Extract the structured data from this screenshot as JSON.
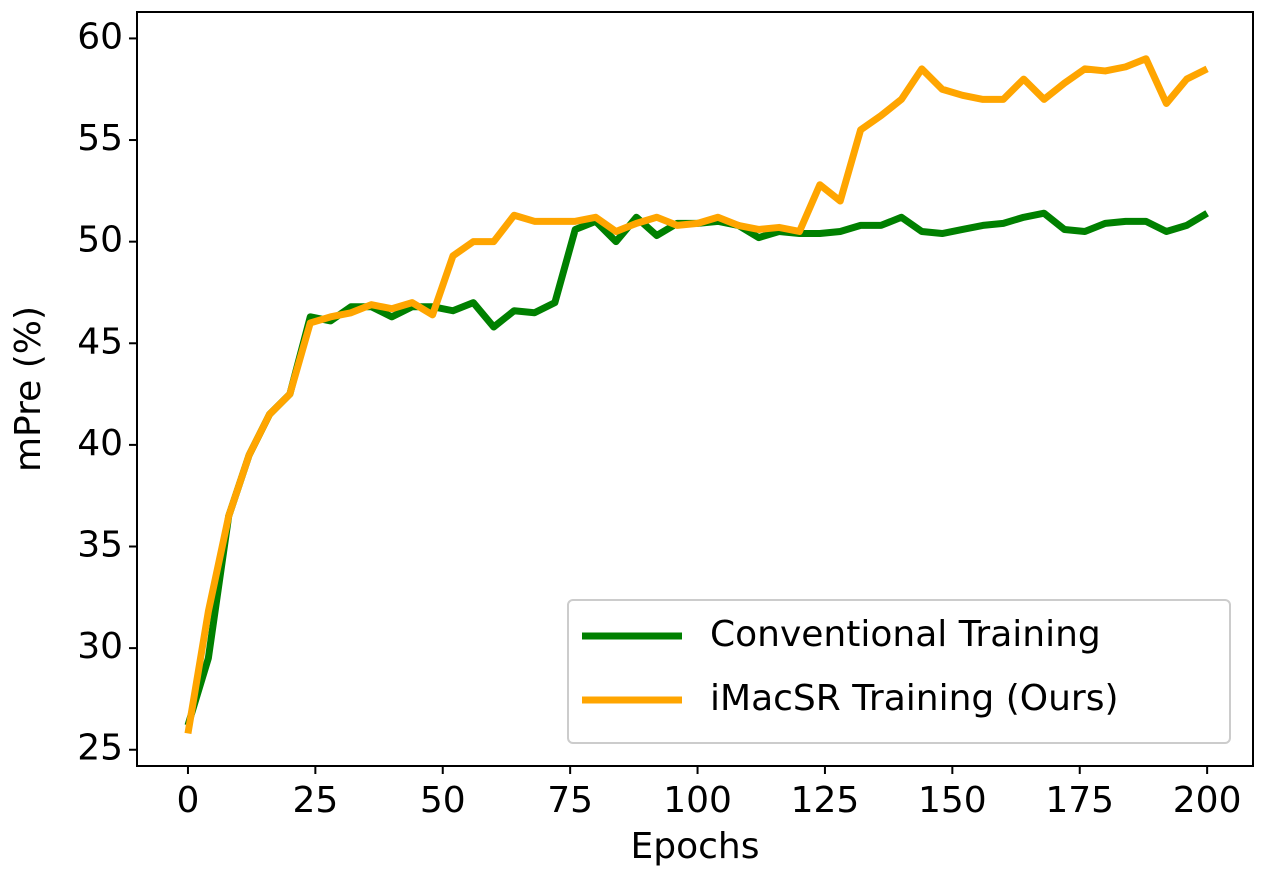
{
  "chart_data": {
    "type": "line",
    "x_label": "Epochs",
    "y_label": "mPre (%)",
    "x": [
      0,
      4,
      8,
      12,
      16,
      20,
      24,
      28,
      32,
      36,
      40,
      44,
      48,
      52,
      56,
      60,
      64,
      68,
      72,
      76,
      80,
      84,
      88,
      92,
      96,
      100,
      104,
      108,
      112,
      116,
      120,
      124,
      128,
      132,
      136,
      140,
      144,
      148,
      152,
      156,
      160,
      164,
      168,
      172,
      176,
      180,
      184,
      188,
      192,
      196,
      200
    ],
    "series": [
      {
        "name": "Conventional Training",
        "color": "#008000",
        "values": [
          26.2,
          29.5,
          36.5,
          39.5,
          41.5,
          42.5,
          46.3,
          46.1,
          46.8,
          46.8,
          46.3,
          46.8,
          46.8,
          46.6,
          47.0,
          45.8,
          46.6,
          46.5,
          47.0,
          50.6,
          51.0,
          50.0,
          51.2,
          50.3,
          50.9,
          50.9,
          51.0,
          50.8,
          50.2,
          50.5,
          50.4,
          50.4,
          50.5,
          50.8,
          50.8,
          51.2,
          50.5,
          50.4,
          50.6,
          50.8,
          50.9,
          51.2,
          51.4,
          50.6,
          50.5,
          50.9,
          51.0,
          51.0,
          50.5,
          50.8,
          51.4
        ]
      },
      {
        "name": "iMacSR Training (Ours)",
        "color": "#ffa500",
        "values": [
          25.8,
          31.8,
          36.5,
          39.5,
          41.5,
          42.5,
          46.0,
          46.3,
          46.5,
          46.9,
          46.7,
          47.0,
          46.4,
          49.3,
          50.0,
          50.0,
          51.3,
          51.0,
          51.0,
          51.0,
          51.2,
          50.5,
          50.9,
          51.2,
          50.8,
          50.9,
          51.2,
          50.8,
          50.6,
          50.7,
          50.5,
          52.8,
          52.0,
          55.5,
          56.2,
          57.0,
          58.5,
          57.5,
          57.2,
          57.0,
          57.0,
          58.0,
          57.0,
          57.8,
          58.5,
          58.4,
          58.6,
          59.0,
          56.8,
          58.0,
          58.5
        ]
      }
    ],
    "xlim": [
      -10,
      209
    ],
    "ylim": [
      24.2,
      61.3
    ],
    "xticks": [
      0,
      25,
      50,
      75,
      100,
      125,
      150,
      175,
      200
    ],
    "yticks": [
      25,
      30,
      35,
      40,
      45,
      50,
      55,
      60
    ],
    "legend": "lower right"
  }
}
